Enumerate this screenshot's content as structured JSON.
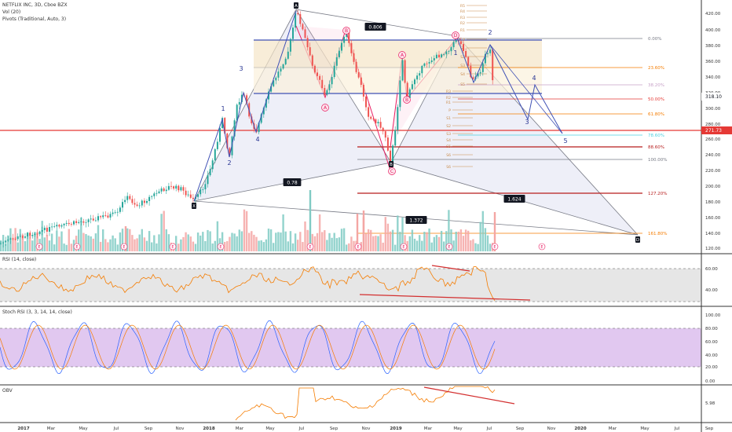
{
  "legend": {
    "title": "NETFLIX INC, 3D, Cboe BZX",
    "volume": "Vol (20)",
    "pivots": "Pivots (Traditional, Auto, 3)"
  },
  "pane_labels": {
    "rsi": "RSI (14, close)",
    "stoch": "Stoch RSI (3, 3, 14, 14, close)",
    "obv": "OBV"
  },
  "chart_data": {
    "type": "candlestick",
    "price_axis": {
      "ticks": [
        "420.00",
        "400.00",
        "380.00",
        "360.00",
        "340.00",
        "320.00",
        "300.00",
        "280.00",
        "260.00",
        "240.00",
        "220.00",
        "200.00",
        "180.00",
        "160.00",
        "140.00",
        "120.00"
      ],
      "current_price": "318.10",
      "red_line_price": "271.73"
    },
    "time_axis": {
      "ticks": [
        "2017",
        "Mar",
        "May",
        "Jul",
        "Sep",
        "Nov",
        "2018",
        "Mar",
        "May",
        "Jul",
        "Sep",
        "Nov",
        "2019",
        "Mar",
        "May",
        "Jul",
        "Sep",
        "Nov",
        "2020",
        "Mar",
        "May",
        "Jul",
        "Sep"
      ]
    },
    "fib_levels": [
      {
        "label": "0.00%",
        "color": "#787b86"
      },
      {
        "label": "23.60%",
        "color": "#f57c00"
      },
      {
        "label": "38.20%",
        "color": "#c8a2c8"
      },
      {
        "label": "50.00%",
        "color": "#e53935"
      },
      {
        "label": "61.80%",
        "color": "#f57c00"
      },
      {
        "label": "78.60%",
        "color": "#4dd0e1"
      },
      {
        "label": "88.60%",
        "color": "#b71c1c"
      },
      {
        "label": "100.00%",
        "color": "#787b86"
      },
      {
        "label": "127.20%",
        "color": "#b71c1c"
      },
      {
        "label": "161.80%",
        "color": "#f57c00"
      }
    ],
    "pivot_labels": [
      "R5",
      "R4",
      "R3",
      "R2",
      "R1",
      "P",
      "S1",
      "S2",
      "S3",
      "S4",
      "S5",
      "R3",
      "R2",
      "R1",
      "P",
      "S1",
      "S2",
      "S3",
      "S4",
      "S5",
      "S6",
      "S6"
    ],
    "ratios": [
      "0.806",
      "0.78",
      "1.624",
      "1.372"
    ],
    "wave_labels": [
      "1",
      "2",
      "3",
      "4",
      "1",
      "2",
      "3",
      "4",
      "5"
    ],
    "pattern_points": [
      "X",
      "A",
      "B",
      "C",
      "D",
      "A",
      "B",
      "C",
      "D",
      "A",
      "B",
      "C",
      "D"
    ],
    "earnings_marker": "E",
    "rsi_ticks": [
      "60.00",
      "40.00"
    ],
    "stoch_ticks": [
      "100.00",
      "80.00",
      "60.00",
      "40.00",
      "20.00",
      "0.00"
    ],
    "obv_ticks": [
      "5.98"
    ]
  }
}
